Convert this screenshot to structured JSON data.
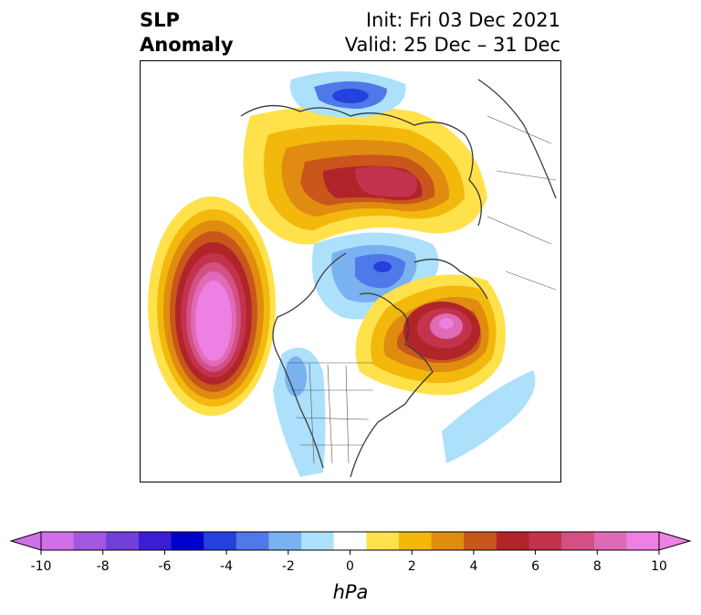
{
  "header": {
    "title_line1": "SLP",
    "title_line2": "Anomaly",
    "init": "Init: Fri 03 Dec 2021",
    "valid": "Valid: 25 Dec – 31 Dec"
  },
  "colorbar": {
    "unit": "hPa",
    "ticks": [
      "-10",
      "-8",
      "-6",
      "-4",
      "-2",
      "0",
      "2",
      "4",
      "6",
      "8",
      "10"
    ],
    "levels": [
      -10,
      -9,
      -8,
      -7,
      -6,
      -5,
      -4,
      -3,
      -2,
      -1,
      1,
      2,
      3,
      4,
      5,
      6,
      7,
      8,
      9,
      10
    ],
    "colors": [
      "#d070e8",
      "#a157e0",
      "#7040d8",
      "#3c1dd4",
      "#0000cc",
      "#2540dd",
      "#4f79e8",
      "#7ab2f0",
      "#ade0fb",
      "#ffffff",
      "#ffe24b",
      "#f2b90c",
      "#e08c10",
      "#c9561a",
      "#b1242a",
      "#c3334d",
      "#d44f84",
      "#df6ab5",
      "#ee7fe3"
    ],
    "extend_low_color": "#d070e8",
    "extend_high_color": "#ee7fe3"
  }
}
